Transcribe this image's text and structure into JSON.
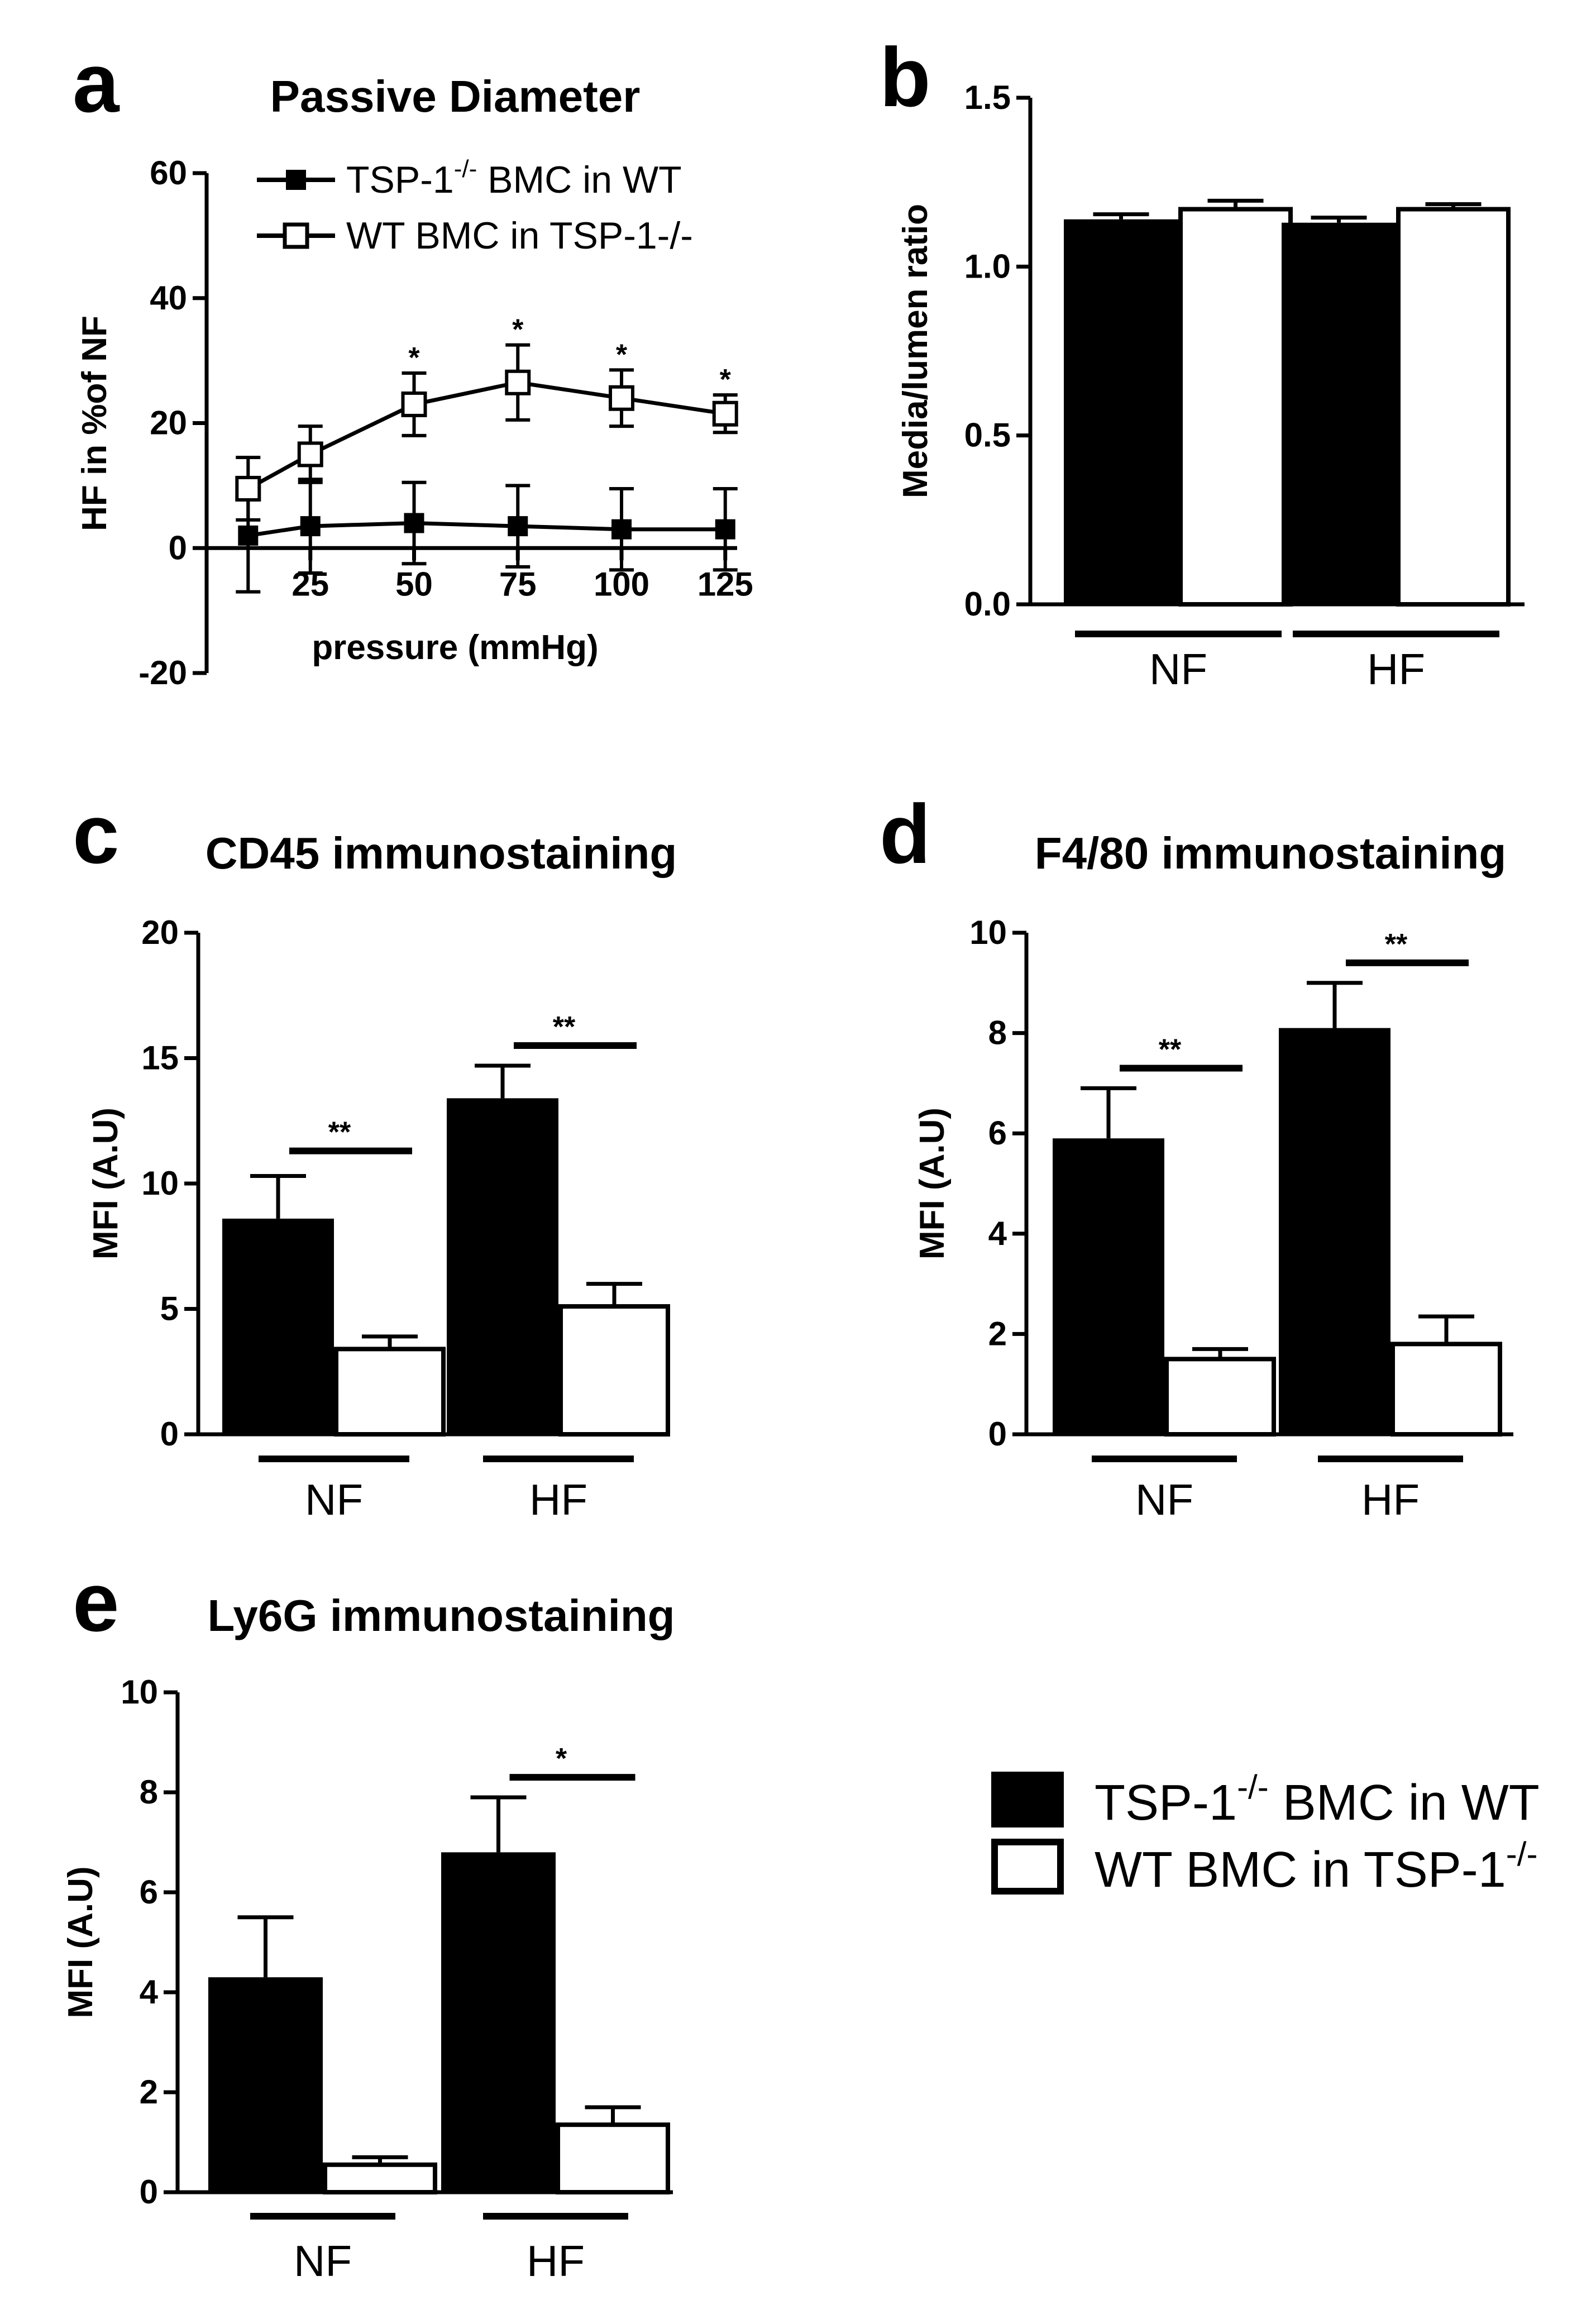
{
  "legend": {
    "series": [
      "TSP-1",
      "WT BMC in TSP-1"
    ],
    "series_a_prefix": "TSP-1",
    "series_a_sup": "-/-",
    "series_a_suffix": " BMC in WT",
    "series_b_prefix": "WT BMC in TSP-1",
    "series_b_sup": "-/-",
    "panel_a_series_b": "WT BMC in TSP-1-/-"
  },
  "chart_data": [
    {
      "panel": "a",
      "type": "line",
      "title": "Passive Diameter",
      "xlabel": "pressure (mmHg)",
      "ylabel": "HF in %of NF",
      "x": [
        10,
        25,
        50,
        75,
        100,
        125
      ],
      "xticks": [
        "25",
        "50",
        "75",
        "100",
        "125"
      ],
      "xtick_values": [
        25,
        50,
        75,
        100,
        125
      ],
      "ylim": [
        -20,
        60
      ],
      "yticks": [
        "-20",
        "0",
        "20",
        "40",
        "60"
      ],
      "ytick_values": [
        -20,
        0,
        20,
        40,
        60
      ],
      "series": [
        {
          "name": "TSP-1-/- BMC in WT",
          "marker": "filled-square",
          "values": [
            2,
            3.5,
            4,
            3.5,
            3,
            3
          ],
          "err": [
            9,
            7.5,
            6.5,
            6.5,
            6.5,
            6.5
          ]
        },
        {
          "name": "WT BMC in TSP-1-/-",
          "marker": "open-square",
          "values": [
            9.5,
            15,
            23,
            26.5,
            24,
            21.5
          ],
          "err": [
            5,
            4.5,
            5,
            6,
            4.5,
            3
          ]
        }
      ],
      "annotations": [
        {
          "x": 50,
          "text": "*"
        },
        {
          "x": 75,
          "text": "*"
        },
        {
          "x": 100,
          "text": "*"
        },
        {
          "x": 125,
          "text": "*"
        }
      ]
    },
    {
      "panel": "b",
      "type": "bar",
      "title": "",
      "ylabel": "Media/lumen ratio",
      "categories": [
        "NF",
        "HF"
      ],
      "ylim": [
        0,
        1.5
      ],
      "yticks": [
        "0.0",
        "0.5",
        "1.0",
        "1.5"
      ],
      "ytick_values": [
        0,
        0.5,
        1.0,
        1.5
      ],
      "series": [
        {
          "name": "TSP-1-/- BMC in WT",
          "values": [
            1.14,
            1.13
          ],
          "err": [
            0.015,
            0.015
          ]
        },
        {
          "name": "WT BMC in TSP-1-/-",
          "values": [
            1.17,
            1.17
          ],
          "err": [
            0.025,
            0.015
          ]
        }
      ],
      "annotations": []
    },
    {
      "panel": "c",
      "type": "bar",
      "title": "CD45 immunostaining",
      "ylabel": "MFI (A.U)",
      "categories": [
        "NF",
        "HF"
      ],
      "ylim": [
        0,
        20
      ],
      "yticks": [
        "0",
        "5",
        "10",
        "15",
        "20"
      ],
      "ytick_values": [
        0,
        5,
        10,
        15,
        20
      ],
      "series": [
        {
          "name": "TSP-1-/- BMC in WT",
          "values": [
            8.6,
            13.4
          ],
          "err": [
            1.7,
            1.3
          ]
        },
        {
          "name": "WT BMC in TSP-1-/-",
          "values": [
            3.4,
            5.1
          ],
          "err": [
            0.5,
            0.9
          ]
        }
      ],
      "annotations": [
        {
          "category": "NF",
          "text": "**",
          "y": 11.3
        },
        {
          "category": "HF",
          "text": "**",
          "y": 15.5
        }
      ]
    },
    {
      "panel": "d",
      "type": "bar",
      "title": "F4/80 immunostaining",
      "ylabel": "MFI (A.U)",
      "categories": [
        "NF",
        "HF"
      ],
      "ylim": [
        0,
        10
      ],
      "yticks": [
        "0",
        "2",
        "4",
        "6",
        "8",
        "10"
      ],
      "ytick_values": [
        0,
        2,
        4,
        6,
        8,
        10
      ],
      "series": [
        {
          "name": "TSP-1-/- BMC in WT",
          "values": [
            5.9,
            8.1
          ],
          "err": [
            1.0,
            0.9
          ]
        },
        {
          "name": "WT BMC in TSP-1-/-",
          "values": [
            1.5,
            1.8
          ],
          "err": [
            0.2,
            0.55
          ]
        }
      ],
      "annotations": [
        {
          "category": "NF",
          "text": "**",
          "y": 7.3
        },
        {
          "category": "HF",
          "text": "**",
          "y": 9.4
        }
      ]
    },
    {
      "panel": "e",
      "type": "bar",
      "title": "Ly6G immunostaining",
      "ylabel": "MFI (A.U)",
      "categories": [
        "NF",
        "HF"
      ],
      "ylim": [
        0,
        10
      ],
      "yticks": [
        "0",
        "2",
        "4",
        "6",
        "8",
        "10"
      ],
      "ytick_values": [
        0,
        2,
        4,
        6,
        8,
        10
      ],
      "series": [
        {
          "name": "TSP-1-/- BMC in WT",
          "values": [
            4.3,
            6.8
          ],
          "err": [
            1.2,
            1.1
          ]
        },
        {
          "name": "WT BMC in TSP-1-/-",
          "values": [
            0.55,
            1.35
          ],
          "err": [
            0.15,
            0.35
          ]
        }
      ],
      "annotations": [
        {
          "category": "HF",
          "text": "*",
          "y": 8.3
        }
      ]
    }
  ]
}
